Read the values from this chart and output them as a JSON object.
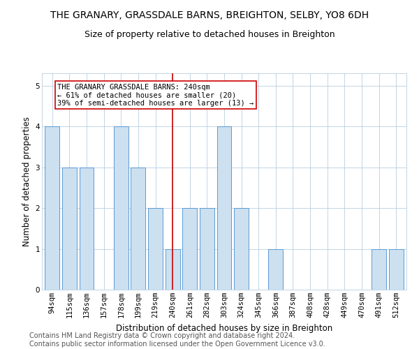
{
  "title": "THE GRANARY, GRASSDALE BARNS, BREIGHTON, SELBY, YO8 6DH",
  "subtitle": "Size of property relative to detached houses in Breighton",
  "xlabel": "Distribution of detached houses by size in Breighton",
  "ylabel": "Number of detached properties",
  "categories": [
    "94sqm",
    "115sqm",
    "136sqm",
    "157sqm",
    "178sqm",
    "199sqm",
    "219sqm",
    "240sqm",
    "261sqm",
    "282sqm",
    "303sqm",
    "324sqm",
    "345sqm",
    "366sqm",
    "387sqm",
    "408sqm",
    "428sqm",
    "449sqm",
    "470sqm",
    "491sqm",
    "512sqm"
  ],
  "values": [
    4,
    3,
    3,
    0,
    4,
    3,
    2,
    1,
    2,
    2,
    4,
    2,
    0,
    1,
    0,
    0,
    0,
    0,
    0,
    1,
    1
  ],
  "bar_color": "#cce0f0",
  "bar_edge_color": "#5b9bd5",
  "marker_index": 7,
  "marker_label_line1": "THE GRANARY GRASSDALE BARNS: 240sqm",
  "marker_label_line2": "← 61% of detached houses are smaller (20)",
  "marker_label_line3": "39% of semi-detached houses are larger (13) →",
  "marker_color": "#cc0000",
  "ylim": [
    0,
    5.3
  ],
  "yticks": [
    0,
    1,
    2,
    3,
    4,
    5
  ],
  "footer_line1": "Contains HM Land Registry data © Crown copyright and database right 2024.",
  "footer_line2": "Contains public sector information licensed under the Open Government Licence v3.0.",
  "bg_color": "#ffffff",
  "grid_color": "#b8cfe0",
  "title_fontsize": 10,
  "subtitle_fontsize": 9,
  "axis_label_fontsize": 8.5,
  "tick_fontsize": 7.5,
  "annotation_fontsize": 7.5,
  "footer_fontsize": 7
}
